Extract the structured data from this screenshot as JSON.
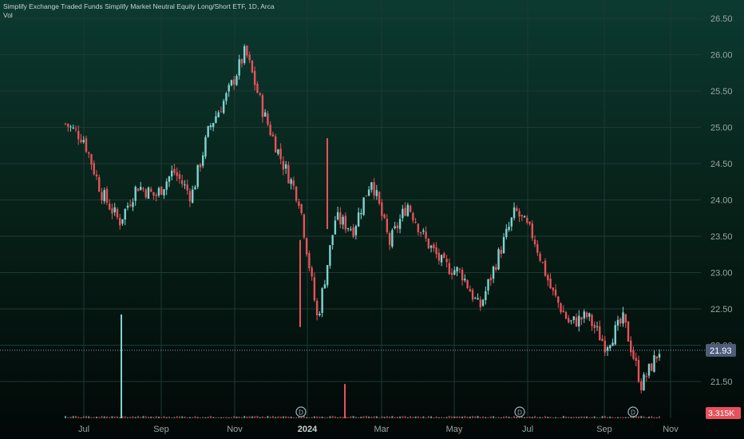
{
  "legend": {
    "title": "Simplify Exchange Traded Funds Simplify Market Neutral Equity Long/Short ETF, 1D, Arca",
    "volume_label": "Vol"
  },
  "colors": {
    "up": "#7fd3d0",
    "down": "#e8515a",
    "last_price_label_bg": "#4f5d7a",
    "volume_label_bg": "#e8515a",
    "dividend_marker": "#9db4bd",
    "grid": "#1d3a33"
  },
  "price_axis": {
    "ticks": [
      "26.50",
      "26.00",
      "25.50",
      "25.00",
      "24.50",
      "24.00",
      "23.50",
      "23.00",
      "22.50",
      "22.00",
      "21.50"
    ],
    "last_price": "21.93"
  },
  "volume_axis": {
    "last_volume": "3.315K"
  },
  "time_axis": {
    "labels": [
      "Jul",
      "Sep",
      "Nov",
      "2024",
      "Mar",
      "May",
      "Jul",
      "Sep",
      "Nov"
    ],
    "bold_label": "2024"
  },
  "dividend_marker_label": "D",
  "chart_data": {
    "type": "candlestick",
    "y_range": [
      21.25,
      26.6
    ],
    "last_price": 21.93,
    "x_dates": [
      "2023-06-20",
      "2023-07-20",
      "2023-08-20",
      "2023-09-20",
      "2023-10-20",
      "2023-11-20",
      "2023-12-20",
      "2024-01-20",
      "2024-02-20",
      "2024-03-20",
      "2024-04-20",
      "2024-05-20",
      "2024-06-20",
      "2024-07-20",
      "2024-08-20",
      "2024-09-20",
      "2024-10-10"
    ],
    "close_path": [
      25.05,
      24.85,
      24.1,
      23.7,
      24.2,
      24.05,
      24.4,
      24.05,
      25.0,
      25.45,
      26.05,
      25.2,
      24.55,
      24.0,
      22.35,
      23.75,
      23.6,
      24.3,
      23.4,
      23.95,
      23.45,
      23.1,
      23.0,
      22.5,
      23.2,
      23.85,
      23.5,
      22.75,
      22.3,
      22.4,
      22.0,
      22.35,
      21.45,
      21.93
    ],
    "dividend_markers": [
      "2023-12",
      "2024-06",
      "2024-09"
    ],
    "volume": {
      "baseline": "low",
      "spikes": [
        {
          "date": "2023-08-10",
          "color": "up",
          "relative_height": 1.0
        },
        {
          "date": "2024-01-25",
          "color": "down",
          "relative_height": 0.33
        }
      ]
    }
  }
}
